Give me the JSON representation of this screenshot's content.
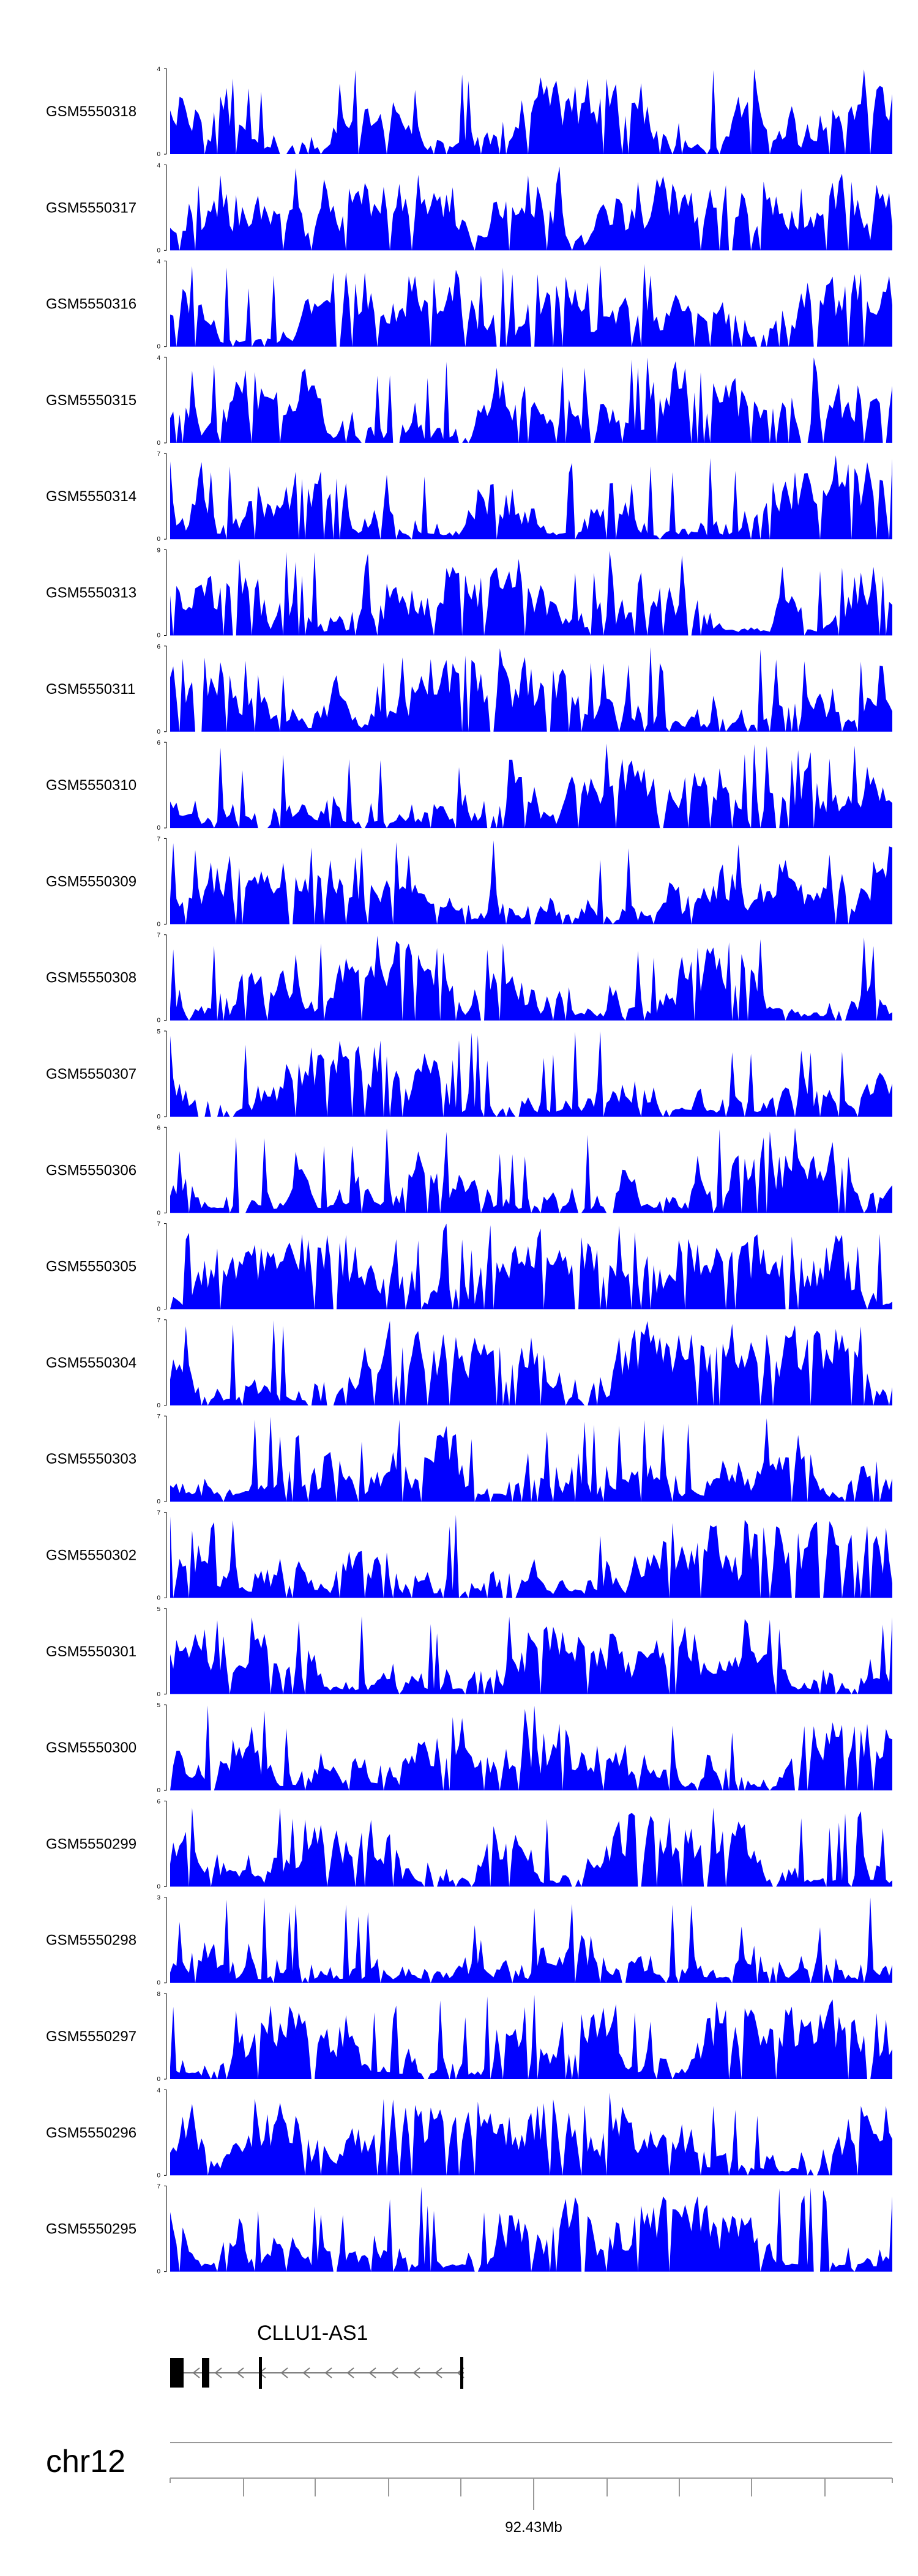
{
  "chart_data": {
    "type": "area",
    "color": "#0000ff",
    "title": "",
    "xlabel": "",
    "ylabel": "",
    "tracks": [
      {
        "name": "GSM5550318",
        "ymax": "4",
        "ymin": "0",
        "seed": 318
      },
      {
        "name": "GSM5550317",
        "ymax": "4",
        "ymin": "0",
        "seed": 317
      },
      {
        "name": "GSM5550316",
        "ymax": "4",
        "ymin": "0",
        "seed": 316
      },
      {
        "name": "GSM5550315",
        "ymax": "4",
        "ymin": "0",
        "seed": 315
      },
      {
        "name": "GSM5550314",
        "ymax": "7",
        "ymin": "0",
        "seed": 314
      },
      {
        "name": "GSM5550313",
        "ymax": "9",
        "ymin": "0",
        "seed": 313
      },
      {
        "name": "GSM5550311",
        "ymax": "6",
        "ymin": "0",
        "seed": 311
      },
      {
        "name": "GSM5550310",
        "ymax": "6",
        "ymin": "0",
        "seed": 310
      },
      {
        "name": "GSM5550309",
        "ymax": "7",
        "ymin": "0",
        "seed": 309
      },
      {
        "name": "GSM5550308",
        "ymax": "7",
        "ymin": "0",
        "seed": 308
      },
      {
        "name": "GSM5550307",
        "ymax": "5",
        "ymin": "0",
        "seed": 307
      },
      {
        "name": "GSM5550306",
        "ymax": "6",
        "ymin": "0",
        "seed": 306
      },
      {
        "name": "GSM5550305",
        "ymax": "7",
        "ymin": "0",
        "seed": 305
      },
      {
        "name": "GSM5550304",
        "ymax": "7",
        "ymin": "0",
        "seed": 304
      },
      {
        "name": "GSM5550303",
        "ymax": "7",
        "ymin": "0",
        "seed": 303
      },
      {
        "name": "GSM5550302",
        "ymax": "7",
        "ymin": "0",
        "seed": 302
      },
      {
        "name": "GSM5550301",
        "ymax": "5",
        "ymin": "0",
        "seed": 301
      },
      {
        "name": "GSM5550300",
        "ymax": "5",
        "ymin": "0",
        "seed": 300
      },
      {
        "name": "GSM5550299",
        "ymax": "6",
        "ymin": "0",
        "seed": 299
      },
      {
        "name": "GSM5550298",
        "ymax": "3",
        "ymin": "0",
        "seed": 298
      },
      {
        "name": "GSM5550297",
        "ymax": "8",
        "ymin": "0",
        "seed": 297
      },
      {
        "name": "GSM5550296",
        "ymax": "4",
        "ymin": "0",
        "seed": 296
      },
      {
        "name": "GSM5550295",
        "ymax": "7",
        "ymin": "0",
        "seed": 295
      }
    ],
    "gene": {
      "name": "CLLU1-AS1",
      "strand": "-"
    },
    "chromosome": "chr12",
    "axis": {
      "position_label": "92.43Mb"
    }
  }
}
